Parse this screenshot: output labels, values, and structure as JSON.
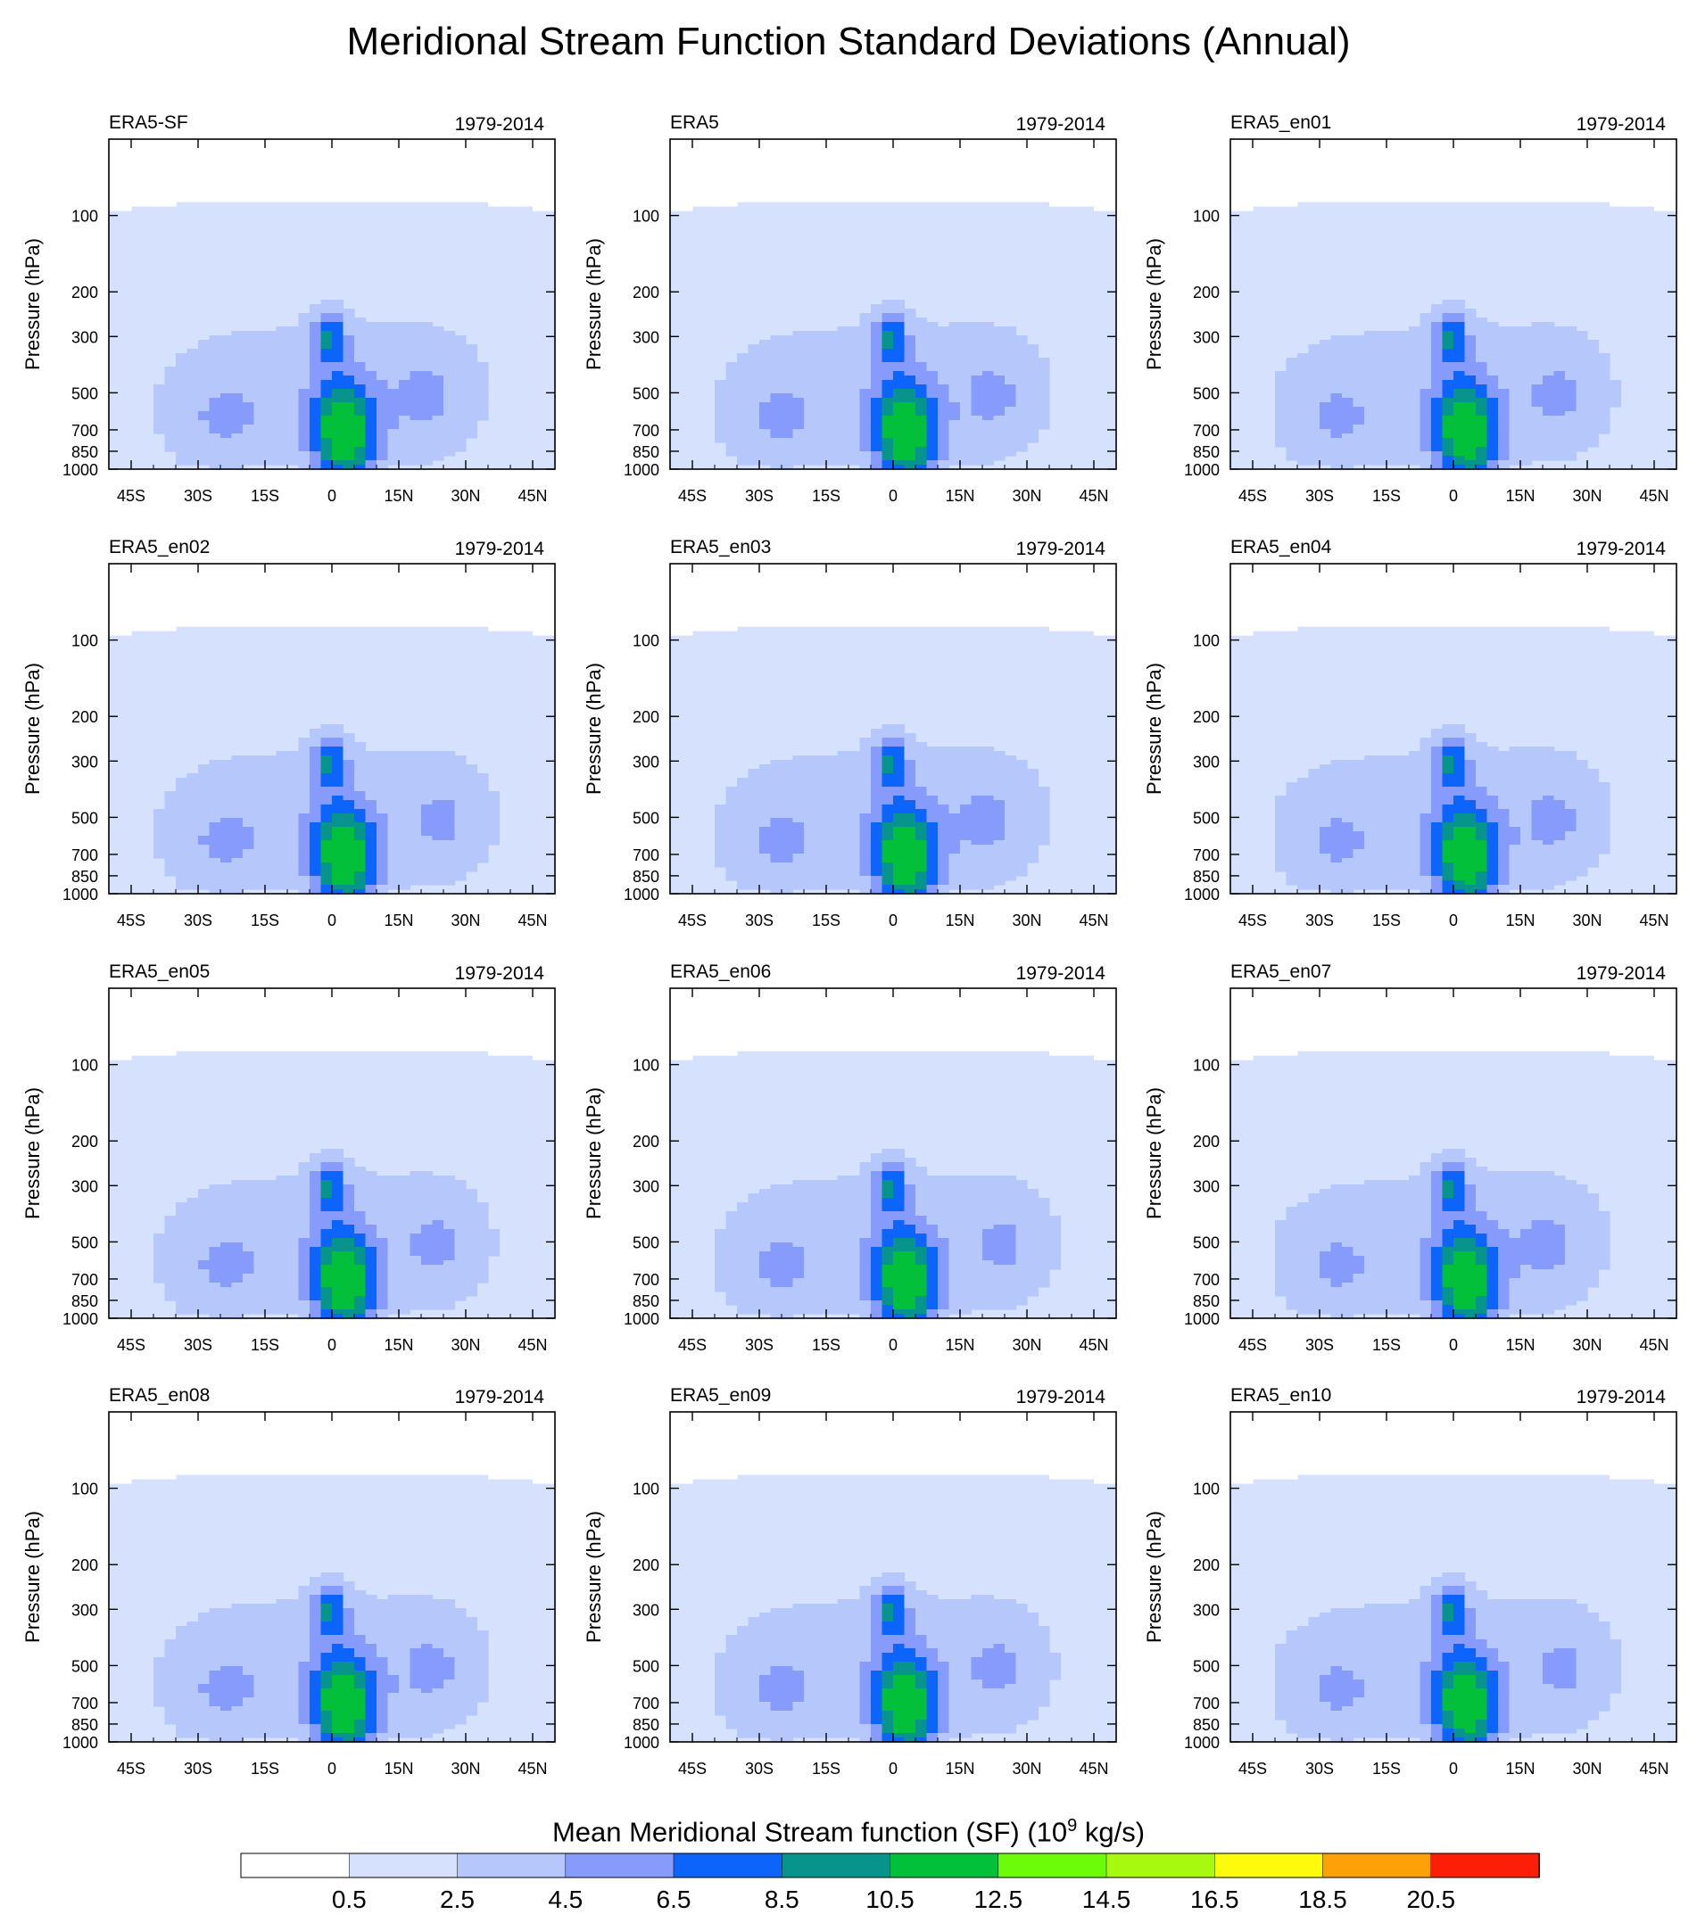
{
  "title": "Meridional Stream Function Standard Deviations (Annual)",
  "chart_data": {
    "type": "heatmap",
    "description_units": "10^9 kg/s",
    "panels": [
      {
        "label": "ERA5-SF",
        "period": "1979-2014"
      },
      {
        "label": "ERA5",
        "period": "1979-2014"
      },
      {
        "label": "ERA5_en01",
        "period": "1979-2014"
      },
      {
        "label": "ERA5_en02",
        "period": "1979-2014"
      },
      {
        "label": "ERA5_en03",
        "period": "1979-2014"
      },
      {
        "label": "ERA5_en04",
        "period": "1979-2014"
      },
      {
        "label": "ERA5_en05",
        "period": "1979-2014"
      },
      {
        "label": "ERA5_en06",
        "period": "1979-2014"
      },
      {
        "label": "ERA5_en07",
        "period": "1979-2014"
      },
      {
        "label": "ERA5_en08",
        "period": "1979-2014"
      },
      {
        "label": "ERA5_en09",
        "period": "1979-2014"
      },
      {
        "label": "ERA5_en10",
        "period": "1979-2014"
      }
    ],
    "ylabel": "Pressure (hPa)",
    "y_ticks": [
      100,
      200,
      300,
      500,
      700,
      850,
      1000
    ],
    "ylim": [
      50,
      1000
    ],
    "x_ticks": [
      "45S",
      "30S",
      "15S",
      "0",
      "15N",
      "30N",
      "45N"
    ],
    "x_tick_values": [
      -45,
      -30,
      -15,
      0,
      15,
      30,
      45
    ],
    "xlim": [
      -50,
      50
    ],
    "contour_levels": [
      0.5,
      2.5,
      4.5,
      6.5,
      8.5,
      10.5
    ],
    "features": {
      "max_near_equator_lat": 4,
      "max_pressure_hPa": 780,
      "max_value_approx": 11
    },
    "colorbar": {
      "title": "Mean Meridional Stream function (SF)",
      "unit_base": "(10",
      "unit_exp": "9",
      "unit_rest": " kg/s)",
      "labels": [
        "0.5",
        "2.5",
        "4.5",
        "6.5",
        "8.5",
        "10.5",
        "12.5",
        "14.5",
        "16.5",
        "18.5",
        "20.5"
      ],
      "colors": [
        "#ffffff",
        "#d5e1fd",
        "#b5c7fb",
        "#869bfb",
        "#0d64fa",
        "#06948d",
        "#02c03a",
        "#6cfb08",
        "#a7f90e",
        "#fdfa0c",
        "#fda109",
        "#fc1e06"
      ]
    }
  }
}
